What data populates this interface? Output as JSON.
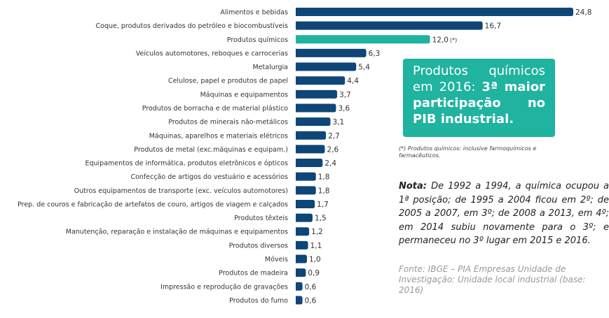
{
  "chart_data": {
    "type": "bar",
    "categories": [
      "Alimentos e bebidas",
      "Coque, produtos derivados do petróleo e biocombustíveis",
      "Produtos químicos",
      "Veículos automotores, reboques e carrocerias",
      "Metalurgia",
      "Celulose, papel e produtos de papel",
      "Máquinas e equipamentos",
      "Produtos de borracha e de material plástico",
      "Produtos de minerais não-metálicos",
      "Máquinas, aparelhos e materiais elétricos",
      "Produtos de metal (exc.máquinas e equipam.)",
      "Equipamentos de informática, produtos eletrônicos e ópticos",
      "Confecção de artigos do vestuário e acessórios",
      "Outros equipamentos de transporte (exc. veículos automotores)",
      "Prep. de couros e fabricação de artefatos de couro, artigos de viagem e calçados",
      "Produtos têxteis",
      "Manutenção, reparação e instalação de máquinas e equipamentos",
      "Produtos diversos",
      "Móveis",
      "Produtos de madeira",
      "Impressão e reprodução de gravações",
      "Produtos do fumo"
    ],
    "values": [
      24.8,
      16.7,
      12.0,
      6.3,
      5.4,
      4.4,
      3.7,
      3.6,
      3.1,
      2.7,
      2.6,
      2.4,
      1.8,
      1.8,
      1.7,
      1.5,
      1.2,
      1.1,
      1.0,
      0.9,
      0.6,
      0.6
    ],
    "value_labels": [
      "24,8",
      "16,7",
      "12,0",
      "6,3",
      "5,4",
      "4,4",
      "3,7",
      "3,6",
      "3,1",
      "2,7",
      "2,6",
      "2,4",
      "1,8",
      "1,8",
      "1,7",
      "1,5",
      "1,2",
      "1,1",
      "1,0",
      "0,9",
      "0,6",
      "0,6"
    ],
    "colors": [
      "#0e4677",
      "#0e4677",
      "#1fb3a0",
      "#0e4677",
      "#0e4677",
      "#0e4677",
      "#0e4677",
      "#0e4677",
      "#0e4677",
      "#0e4677",
      "#0e4677",
      "#0e4677",
      "#0e4677",
      "#0e4677",
      "#0e4677",
      "#0e4677",
      "#0e4677",
      "#0e4677",
      "#0e4677",
      "#0e4677",
      "#0e4677",
      "#0e4677"
    ],
    "annotation": "(*)",
    "box_regular": "Produtos químicos em 2016:",
    "box_bold": "3ª maior participação no PIB industrial.",
    "footnote": "(*) Produtos químicos: inclusive farmoquímicos e farmacêuticos.",
    "note_label": "Nota:",
    "note_text": "De 1992 a 1994, a química ocupou a 1ª posição; de 1995 a 2004 ficou em 2º; de 2005 a 2007, em 3º; de 2008 a 2013, em 4º; em 2014 subiu novamente para o 3º; e permaneceu no 3º lugar em 2015 e 2016.",
    "source": "Fonte: IBGE – PIA Empresas Unidade de Investigação: Unidade local industrial (base: 2016)"
  }
}
